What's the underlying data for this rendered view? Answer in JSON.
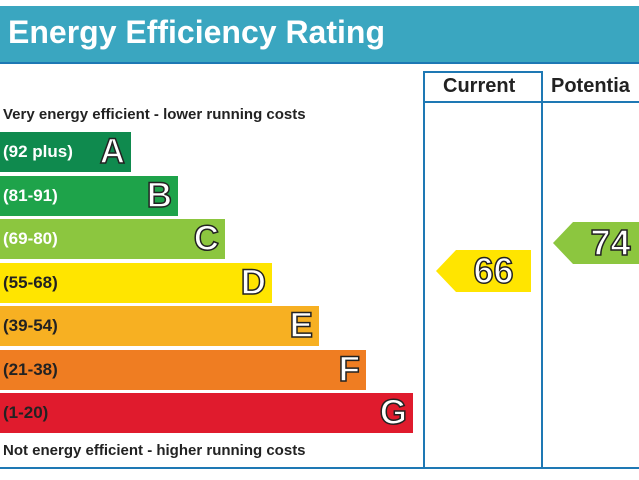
{
  "header": {
    "title": "Energy Efficiency Rating"
  },
  "columns": {
    "current": "Current",
    "potential": "Potentia"
  },
  "captions": {
    "top": "Very energy efficient - lower running costs",
    "bottom": "Not energy efficient - higher running costs"
  },
  "chart_data": {
    "type": "bar",
    "title": "Energy Efficiency Rating",
    "bands": [
      {
        "letter": "A",
        "range": "(92 plus)",
        "color": "#0f8a4e"
      },
      {
        "letter": "B",
        "range": "(81-91)",
        "color": "#1ea34a"
      },
      {
        "letter": "C",
        "range": "(69-80)",
        "color": "#8cc63f"
      },
      {
        "letter": "D",
        "range": "(55-68)",
        "color": "#ffe500"
      },
      {
        "letter": "E",
        "range": "(39-54)",
        "color": "#f7b022"
      },
      {
        "letter": "F",
        "range": "(21-38)",
        "color": "#ef7d22"
      },
      {
        "letter": "G",
        "range": "(1-20)",
        "color": "#e01b2d"
      }
    ],
    "current": {
      "value": "66",
      "band": "D",
      "color": "#ffe500"
    },
    "potential": {
      "value": "74",
      "band": "C",
      "color": "#8cc63f"
    }
  }
}
